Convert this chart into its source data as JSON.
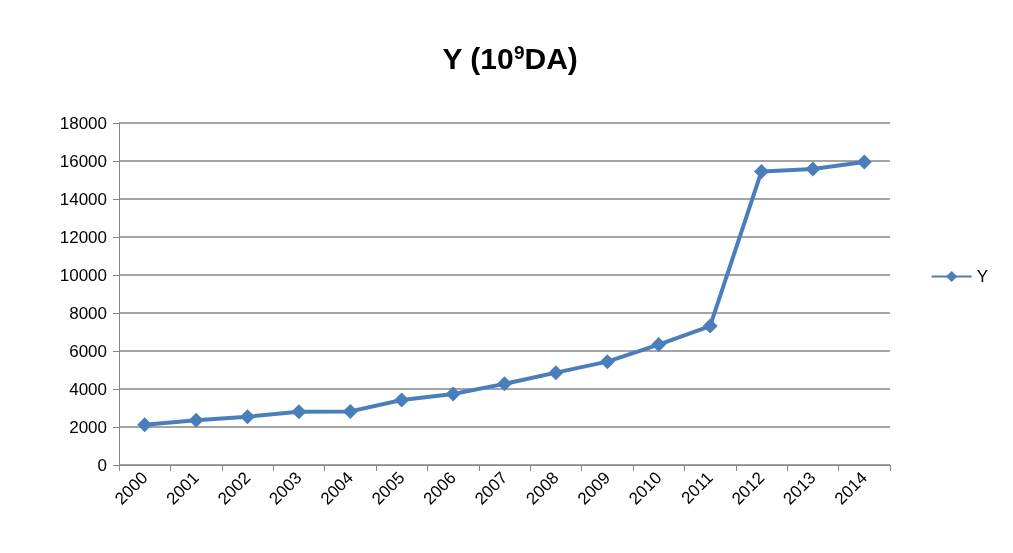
{
  "chart_data": {
    "type": "line",
    "title": "Y (10$^{9}$DA)",
    "categories": [
      "2000",
      "2001",
      "2002",
      "2003",
      "2004",
      "2005",
      "2006",
      "2007",
      "2008",
      "2009",
      "2010",
      "2011",
      "2012",
      "2013",
      "2014"
    ],
    "series": [
      {
        "name": "Y",
        "color": "#4a7ebb",
        "values": [
          2120,
          2350,
          2540,
          2800,
          2820,
          3420,
          3740,
          4270,
          4860,
          5440,
          6340,
          7310,
          15450,
          15580,
          15950
        ]
      }
    ],
    "ylim": [
      0,
      18000
    ],
    "yticks": [
      0,
      2000,
      4000,
      6000,
      8000,
      10000,
      12000,
      14000,
      16000,
      18000
    ],
    "grid": "y",
    "legend": "right",
    "marker": "diamond",
    "line_style": "solid"
  }
}
